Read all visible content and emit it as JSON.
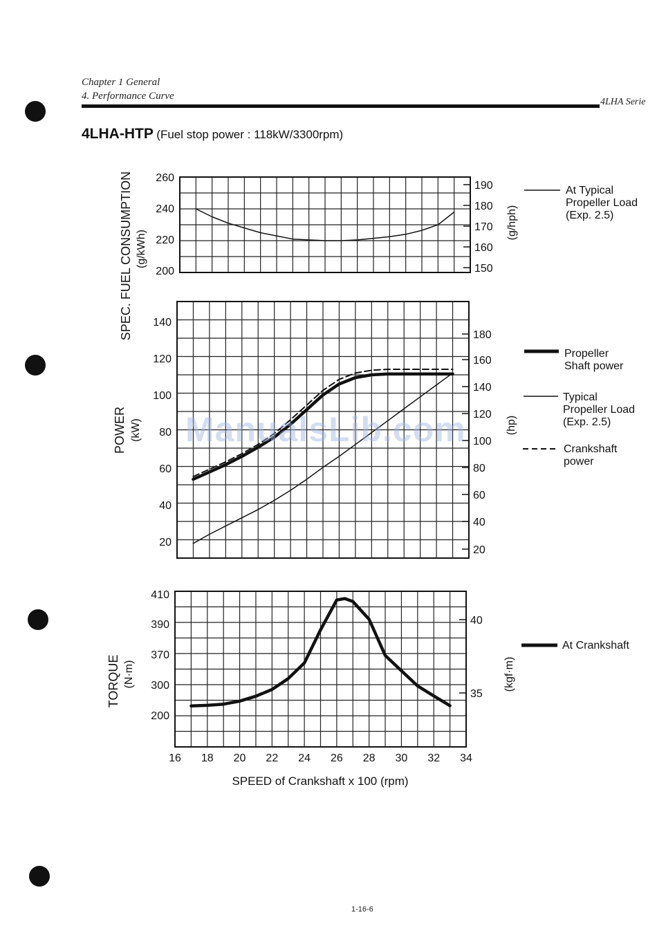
{
  "header": {
    "chapter": "Chapter 1 General",
    "section": "4. Performance Curve",
    "series": "4LHA Serie"
  },
  "heading": {
    "model": "4LHA-HTP",
    "subtitle": "(Fuel stop power : 118kW/3300rpm)"
  },
  "watermark": "ManualsLib.com",
  "page_number": "1-16-6",
  "chart_data": [
    {
      "type": "line",
      "id": "fuel",
      "ylabel": "SPEC. FUEL CONSUMPTION",
      "ylabel_unit": "(g/kWh)",
      "ylabel_right": "(g/hph)",
      "ylim": [
        200,
        260
      ],
      "yticks": [
        "260",
        "240",
        "220",
        "200"
      ],
      "yticks_right": [
        "190",
        "180",
        "170",
        "160",
        "150"
      ],
      "grid": true,
      "series": [
        {
          "name": "At Typical Propeller Load (Exp. 2.5)",
          "style": "thin",
          "x": [
            17,
            18,
            19,
            20,
            21,
            22,
            23,
            24,
            25,
            26,
            27,
            28,
            29,
            30,
            31,
            32,
            33
          ],
          "y": [
            240,
            235,
            231,
            228,
            225,
            223,
            221,
            220.5,
            220,
            220,
            220.5,
            221.5,
            222.5,
            224,
            226.5,
            230,
            238
          ]
        }
      ]
    },
    {
      "type": "line",
      "id": "power",
      "ylabel": "POWER",
      "ylabel_unit": "(kW)",
      "ylabel_right": "(hp)",
      "ylim": [
        15,
        155
      ],
      "yticks": [
        "140",
        "120",
        "100",
        "80",
        "60",
        "40",
        "20"
      ],
      "yticks_right": [
        "180",
        "160",
        "140",
        "120",
        "100",
        "80",
        "60",
        "40",
        "20"
      ],
      "grid": true,
      "series": [
        {
          "name": "Propeller Shaft power",
          "style": "thick",
          "x": [
            17,
            18,
            19,
            20,
            21,
            22,
            23,
            24,
            25,
            26,
            27,
            28,
            29,
            30,
            31,
            32,
            33
          ],
          "y": [
            58,
            62,
            66,
            70.5,
            75.5,
            81,
            88,
            96,
            104,
            110,
            113.5,
            115,
            115.5,
            115.5,
            115.5,
            115.5,
            115.5
          ]
        },
        {
          "name": "Typical Propeller Load (Exp. 2.5)",
          "style": "thin",
          "x": [
            17,
            18,
            19,
            20,
            21,
            22,
            23,
            24,
            25,
            26,
            27,
            28,
            29,
            30,
            31,
            32,
            33
          ],
          "y": [
            23,
            28,
            32.5,
            37,
            41.5,
            46.5,
            52,
            58,
            64.5,
            70.5,
            77,
            83.5,
            90,
            96.5,
            103,
            109.5,
            116
          ]
        },
        {
          "name": "Crankshaft power",
          "style": "dashed",
          "x": [
            17,
            18,
            19,
            20,
            21,
            22,
            23,
            24,
            25,
            26,
            27,
            28,
            29,
            30,
            31,
            32,
            33
          ],
          "y": [
            59.5,
            63.5,
            67.5,
            72,
            77,
            83,
            90.5,
            98.5,
            106.5,
            112.5,
            116,
            117.5,
            118,
            118,
            118,
            118,
            118
          ]
        }
      ]
    },
    {
      "type": "line",
      "id": "torque",
      "ylabel": "TORQUE",
      "ylabel_unit": "(N·m)",
      "ylabel_right": "(kgf·m)",
      "xlabel": "SPEED of Crankshaft  x 100  (rpm)",
      "xlim": [
        16,
        34
      ],
      "xticks": [
        "16",
        "18",
        "20",
        "22",
        "24",
        "26",
        "28",
        "30",
        "32",
        "34"
      ],
      "yticks": [
        "410",
        "390",
        "370",
        "300",
        "200"
      ],
      "yticks_right": [
        "40",
        "35"
      ],
      "grid": true,
      "series": [
        {
          "name": "At Crankshaft",
          "style": "thick",
          "x": [
            17,
            18,
            19,
            20,
            21,
            22,
            23,
            24,
            25,
            26,
            26.5,
            27,
            28,
            29,
            30,
            31,
            32,
            33
          ],
          "y": [
            230,
            232,
            236,
            246,
            262,
            284,
            314,
            350,
            386,
            406,
            407,
            405,
            393,
            367,
            332,
            296,
            263,
            231
          ]
        }
      ]
    }
  ],
  "legends": {
    "fuel": [
      "At Typical",
      "Propeller Load",
      "(Exp. 2.5)"
    ],
    "power_shaft": [
      "Propeller",
      "Shaft power"
    ],
    "power_load": [
      "Typical",
      "Propeller Load",
      "(Exp. 2.5)"
    ],
    "power_crank": [
      "Crankshaft",
      "power"
    ],
    "torque": [
      "At Crankshaft"
    ]
  },
  "colors": {
    "ink": "#111111",
    "watermark": "#9fb4e4"
  }
}
